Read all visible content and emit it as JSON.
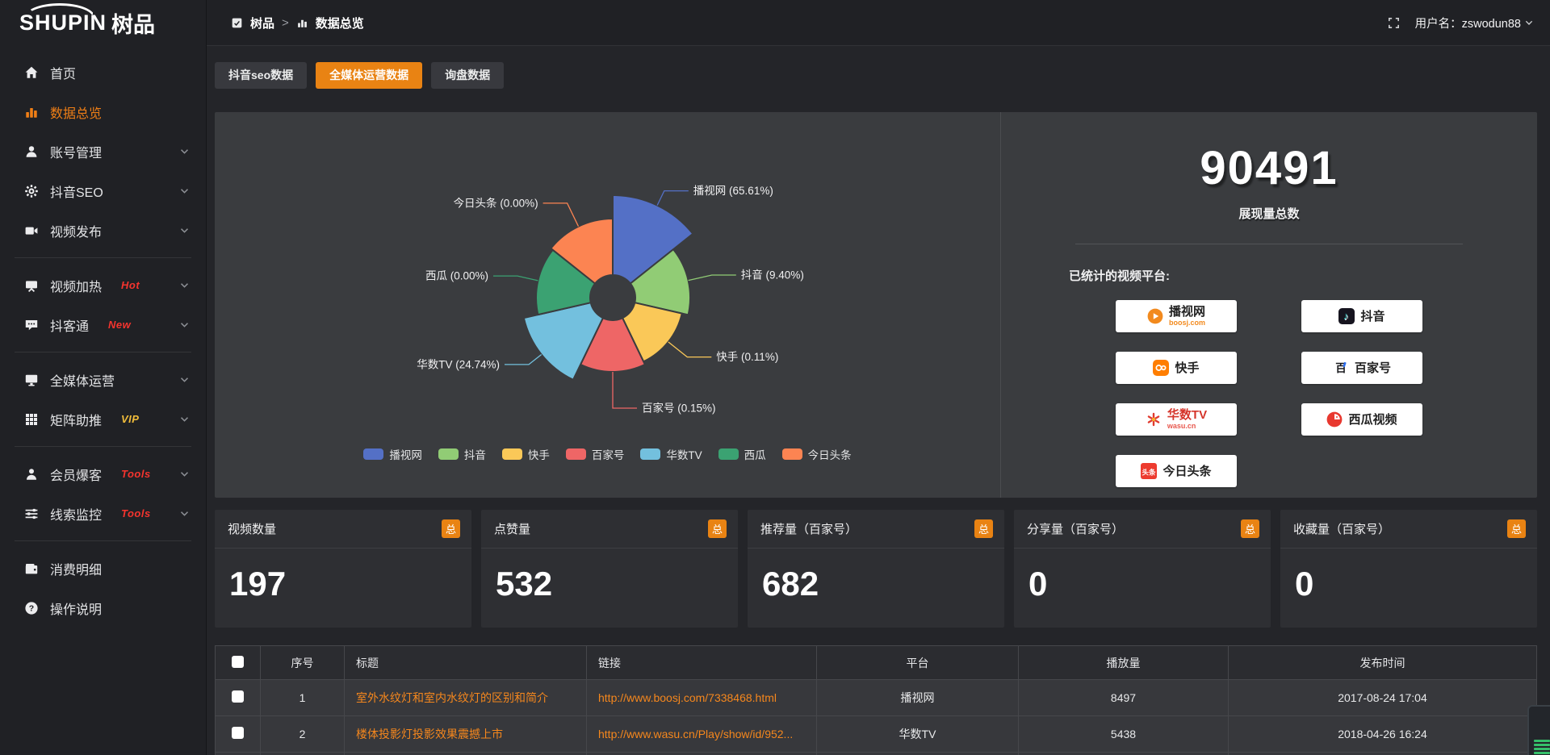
{
  "header": {
    "logo_en": "SHUPIN",
    "logo_cn": "树品",
    "breadcrumb": [
      {
        "label": "树品"
      },
      {
        "label": "数据总览"
      }
    ],
    "breadcrumb_separator": ">",
    "username": "用户名：zswodun88"
  },
  "sidebar": {
    "groups": [
      {
        "items": [
          {
            "icon": "home-icon",
            "label": "首页"
          },
          {
            "icon": "bar-chart-icon",
            "label": "数据总览",
            "active": true
          },
          {
            "icon": "user-icon",
            "label": "账号管理",
            "chevron": true
          },
          {
            "icon": "gear-icon",
            "label": "抖音SEO",
            "chevron": true
          },
          {
            "icon": "video-icon",
            "label": "视频发布",
            "chevron": true
          }
        ]
      },
      {
        "items": [
          {
            "icon": "tv-icon",
            "label": "视频加热",
            "badge": "Hot",
            "badge_color": "#f5342e",
            "chevron": true
          },
          {
            "icon": "chat-icon",
            "label": "抖客通",
            "badge": "New",
            "badge_color": "#f5342e",
            "chevron": true
          }
        ]
      },
      {
        "items": [
          {
            "icon": "monitor-icon",
            "label": "全媒体运营",
            "chevron": true
          },
          {
            "icon": "grid-icon",
            "label": "矩阵助推",
            "badge": "VIP",
            "badge_color": "#f0bc3a",
            "chevron": true
          }
        ]
      },
      {
        "items": [
          {
            "icon": "person-icon",
            "label": "会员爆客",
            "badge": "Tools",
            "badge_color": "#f5342e",
            "chevron": true
          },
          {
            "icon": "sliders-icon",
            "label": "线索监控",
            "badge": "Tools",
            "badge_color": "#f5342e",
            "chevron": true
          }
        ]
      },
      {
        "items": [
          {
            "icon": "wallet-icon",
            "label": "消费明细"
          },
          {
            "icon": "question-icon",
            "label": "操作说明"
          }
        ]
      }
    ]
  },
  "tabs": [
    {
      "label": "抖音seo数据",
      "active": false
    },
    {
      "label": "全媒体运营数据",
      "active": true
    },
    {
      "label": "询盘数据",
      "active": false
    }
  ],
  "chart_data": {
    "type": "pie",
    "variant": "nightingale-rose",
    "label_format": "{name} ({pct}%)",
    "legend_position": "bottom",
    "items": [
      {
        "name": "播视网",
        "pct": 65.61,
        "color": "#5470c6"
      },
      {
        "name": "抖音",
        "pct": 9.4,
        "color": "#91cc75"
      },
      {
        "name": "快手",
        "pct": 0.11,
        "color": "#fac858"
      },
      {
        "name": "百家号",
        "pct": 0.15,
        "color": "#ee6666"
      },
      {
        "name": "华数TV",
        "pct": 24.74,
        "color": "#73c0de"
      },
      {
        "name": "西瓜",
        "pct": 0.0,
        "color": "#3ba272"
      },
      {
        "name": "今日头条",
        "pct": 0.0,
        "color": "#fc8452"
      }
    ],
    "legend": [
      "播视网",
      "抖音",
      "快手",
      "百家号",
      "华数TV",
      "西瓜",
      "今日头条"
    ]
  },
  "summary": {
    "total_value": "90491",
    "total_label": "展现量总数",
    "platforms_title": "已统计的视频平台:",
    "platforms": [
      {
        "name": "播视网",
        "sub": "boosj.com",
        "sub_color": "#f28a1e",
        "icon": "boosj-icon"
      },
      {
        "name": "抖音",
        "icon": "douyin-icon"
      },
      {
        "name": "快手",
        "icon": "kuaishou-icon"
      },
      {
        "name": "百家号",
        "icon": "baijiahao-icon"
      },
      {
        "name": "华数TV",
        "sub": "wasu.cn",
        "sub_color": "#e8594f",
        "name_color": "#d5352b",
        "icon": "wasu-icon"
      },
      {
        "name": "西瓜视频",
        "icon": "xigua-icon"
      },
      {
        "name": "今日头条",
        "icon": "toutiao-icon"
      }
    ]
  },
  "stat_cards": [
    {
      "label": "视频数量",
      "badge": "总",
      "value": "197"
    },
    {
      "label": "点赞量",
      "badge": "总",
      "value": "532"
    },
    {
      "label": "推荐量（百家号）",
      "badge": "总",
      "value": "682"
    },
    {
      "label": "分享量（百家号）",
      "badge": "总",
      "value": "0"
    },
    {
      "label": "收藏量（百家号）",
      "badge": "总",
      "value": "0"
    }
  ],
  "table": {
    "columns": [
      "序号",
      "标题",
      "链接",
      "平台",
      "播放量",
      "发布时间"
    ],
    "rows": [
      {
        "seq": "1",
        "title": "室外水纹灯和室内水纹灯的区别和简介",
        "link": "http://www.boosj.com/7338468.html",
        "platform": "播视网",
        "plays": "8497",
        "time": "2017-08-24 17:04"
      },
      {
        "seq": "2",
        "title": "楼体投影灯投影效果震撼上市",
        "link": "http://www.wasu.cn/Play/show/id/952...",
        "platform": "华数TV",
        "plays": "5438",
        "time": "2018-04-26 16:24"
      },
      {
        "seq": "",
        "title": "",
        "link": "",
        "platform": "",
        "plays": "",
        "time": ""
      }
    ]
  },
  "colors": {
    "accent": "#e98313",
    "link": "#f5871d",
    "hot": "#f5342e",
    "vip": "#f0bc3a"
  }
}
